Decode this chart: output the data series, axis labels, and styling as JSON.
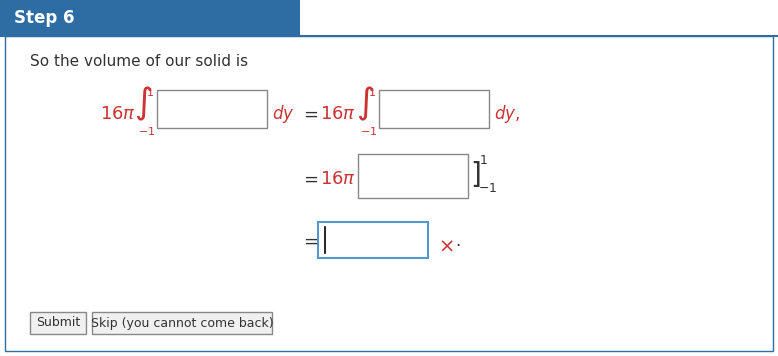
{
  "title": "Step 6",
  "title_bg": "#2E6DA4",
  "title_text_color": "white",
  "body_bg": "white",
  "border_color": "#2E6DA4",
  "text_color": "#333333",
  "red_color": "#CC3333",
  "intro_text": "So the volume of our solid is",
  "submit_label": "Submit",
  "skip_label": "Skip (you cannot come back)",
  "fig_width": 7.78,
  "fig_height": 3.56,
  "dpi": 100
}
